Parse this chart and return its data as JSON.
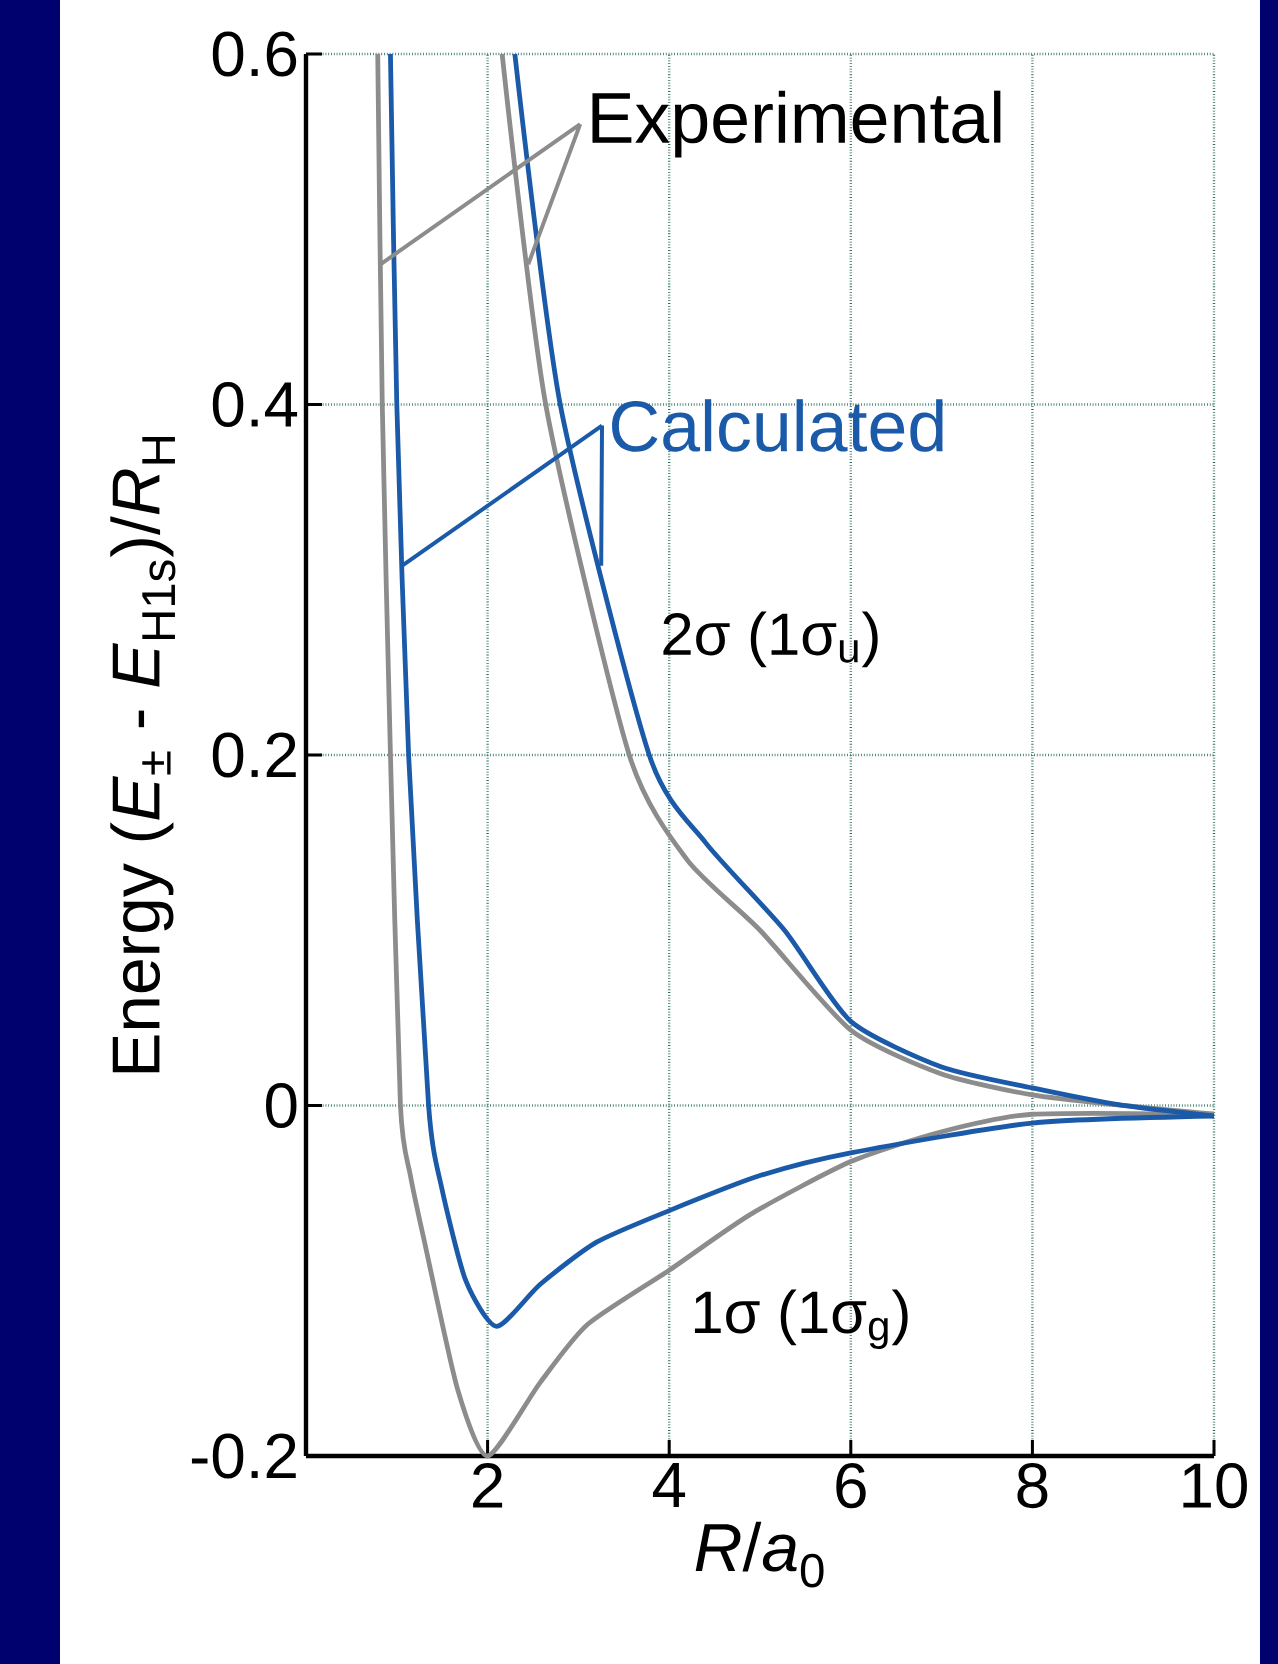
{
  "chart_data": {
    "type": "line",
    "xlabel": "*R*/*a*$_{0}$",
    "ylabel": "Energy (*E*$_{±}$ - *E*$_{H1s}$)/*R*$_{H}$",
    "xlim": [
      0,
      10
    ],
    "ylim": [
      -0.2,
      0.6
    ],
    "xticks": [
      2,
      4,
      6,
      8,
      10
    ],
    "yticks": [
      -0.2,
      0,
      0.2,
      0.4,
      0.6
    ],
    "grid": true,
    "series": [
      {
        "color": "#8c8c8c",
        "x": [
          0.79,
          0.84,
          0.93,
          1.04,
          1.15,
          1.31,
          1.67,
          2.0,
          2.58,
          3.1,
          4,
          4.9,
          6,
          7,
          8,
          10
        ],
        "values": [
          0.6,
          0.4,
          0.2,
          0,
          -0.04,
          -0.079,
          -0.162,
          -0.2,
          -0.158,
          -0.125,
          -0.094,
          -0.062,
          -0.032,
          -0.015,
          -0.005,
          -0.005
        ]
      },
      {
        "color": "#1a5aa8",
        "x": [
          0.93,
          1.0,
          1.13,
          1.35,
          1.49,
          1.76,
          2.1,
          2.58,
          3.2,
          4,
          5,
          6,
          8,
          10
        ],
        "values": [
          0.6,
          0.4,
          0.2,
          0,
          -0.046,
          -0.1,
          -0.126,
          -0.102,
          -0.078,
          -0.06,
          -0.04,
          -0.027,
          -0.01,
          -0.006
        ]
      },
      {
        "color": "#8c8c8c",
        "x": [
          2.16,
          2.64,
          3.56,
          4.2,
          5.0,
          6,
          7,
          8,
          9,
          10
        ],
        "values": [
          0.6,
          0.4,
          0.2,
          0.14,
          0.1,
          0.043,
          0.018,
          0.006,
          0,
          -0.005
        ]
      },
      {
        "color": "#1a5aa8",
        "x": [
          2.3,
          2.8,
          3.78,
          4.4,
          5.27,
          6,
          7,
          8,
          9,
          10
        ],
        "values": [
          0.6,
          0.4,
          0.2,
          0.15,
          0.1,
          0.048,
          0.022,
          0.01,
          0,
          -0.006
        ]
      }
    ],
    "annotations": [
      {
        "text": "Experimental",
        "x": 0.82,
        "y": 0.48
      },
      {
        "text": "Calculated",
        "x": 1.06,
        "y": 0.308
      },
      "2σ (1σ$_{u}$)",
      "1σ (1σ$_{g}$)"
    ]
  }
}
